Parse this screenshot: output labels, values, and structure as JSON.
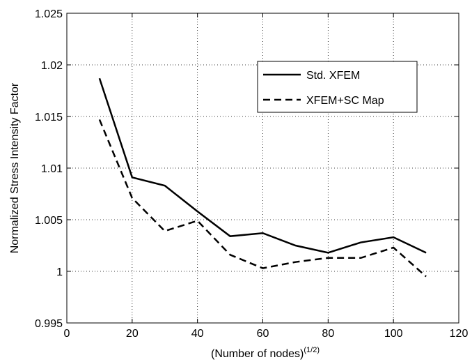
{
  "chart_data": {
    "type": "line",
    "title": "",
    "xlabel_main": "(Number of nodes)",
    "xlabel_sup": "(1/2)",
    "ylabel": "Normalized Stress Intensity Factor",
    "xlim": [
      0,
      120
    ],
    "ylim": [
      0.995,
      1.025
    ],
    "xticks": [
      0,
      20,
      40,
      60,
      80,
      100,
      120
    ],
    "xtick_labels": [
      "0",
      "20",
      "40",
      "60",
      "80",
      "100",
      "120"
    ],
    "yticks": [
      0.995,
      1.0,
      1.005,
      1.01,
      1.015,
      1.02,
      1.025
    ],
    "ytick_labels": [
      "0.995",
      "1",
      "1.005",
      "1.01",
      "1.015",
      "1.02",
      "1.025"
    ],
    "grid": true,
    "legend_position": "top-right",
    "x": [
      10,
      20,
      30,
      40,
      50,
      60,
      70,
      80,
      90,
      100,
      110
    ],
    "series": [
      {
        "name": "Std. XFEM",
        "style": "solid",
        "color": "#000000",
        "values": [
          1.0187,
          1.0091,
          1.0083,
          1.0058,
          1.0034,
          1.0037,
          1.0025,
          1.0018,
          1.0028,
          1.0033,
          1.0018
        ]
      },
      {
        "name": "XFEM+SC Map",
        "style": "dashed",
        "color": "#000000",
        "values": [
          1.0147,
          1.0071,
          1.0039,
          1.0049,
          1.0016,
          1.0003,
          1.0009,
          1.0013,
          1.0013,
          1.0023,
          0.9995
        ]
      }
    ]
  }
}
